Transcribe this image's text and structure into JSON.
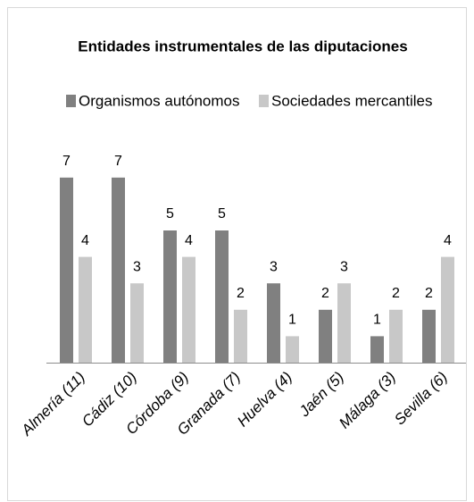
{
  "chart_data": {
    "type": "bar",
    "title": "Entidades instrumentales de las diputaciones",
    "categories": [
      "Almería (11)",
      "Cádiz (10)",
      "Córdoba (9)",
      "Granada (7)",
      "Huelva (4)",
      "Jaén (5)",
      "Málaga (3)",
      "Sevilla (6)"
    ],
    "series": [
      {
        "name": "Organismos autónomos",
        "color": "#808080",
        "values": [
          7,
          7,
          5,
          5,
          3,
          2,
          1,
          2
        ]
      },
      {
        "name": "Sociedades mercantiles",
        "color": "#c8c8c8",
        "values": [
          4,
          3,
          4,
          2,
          1,
          3,
          2,
          4
        ]
      }
    ],
    "legend": "top"
  }
}
